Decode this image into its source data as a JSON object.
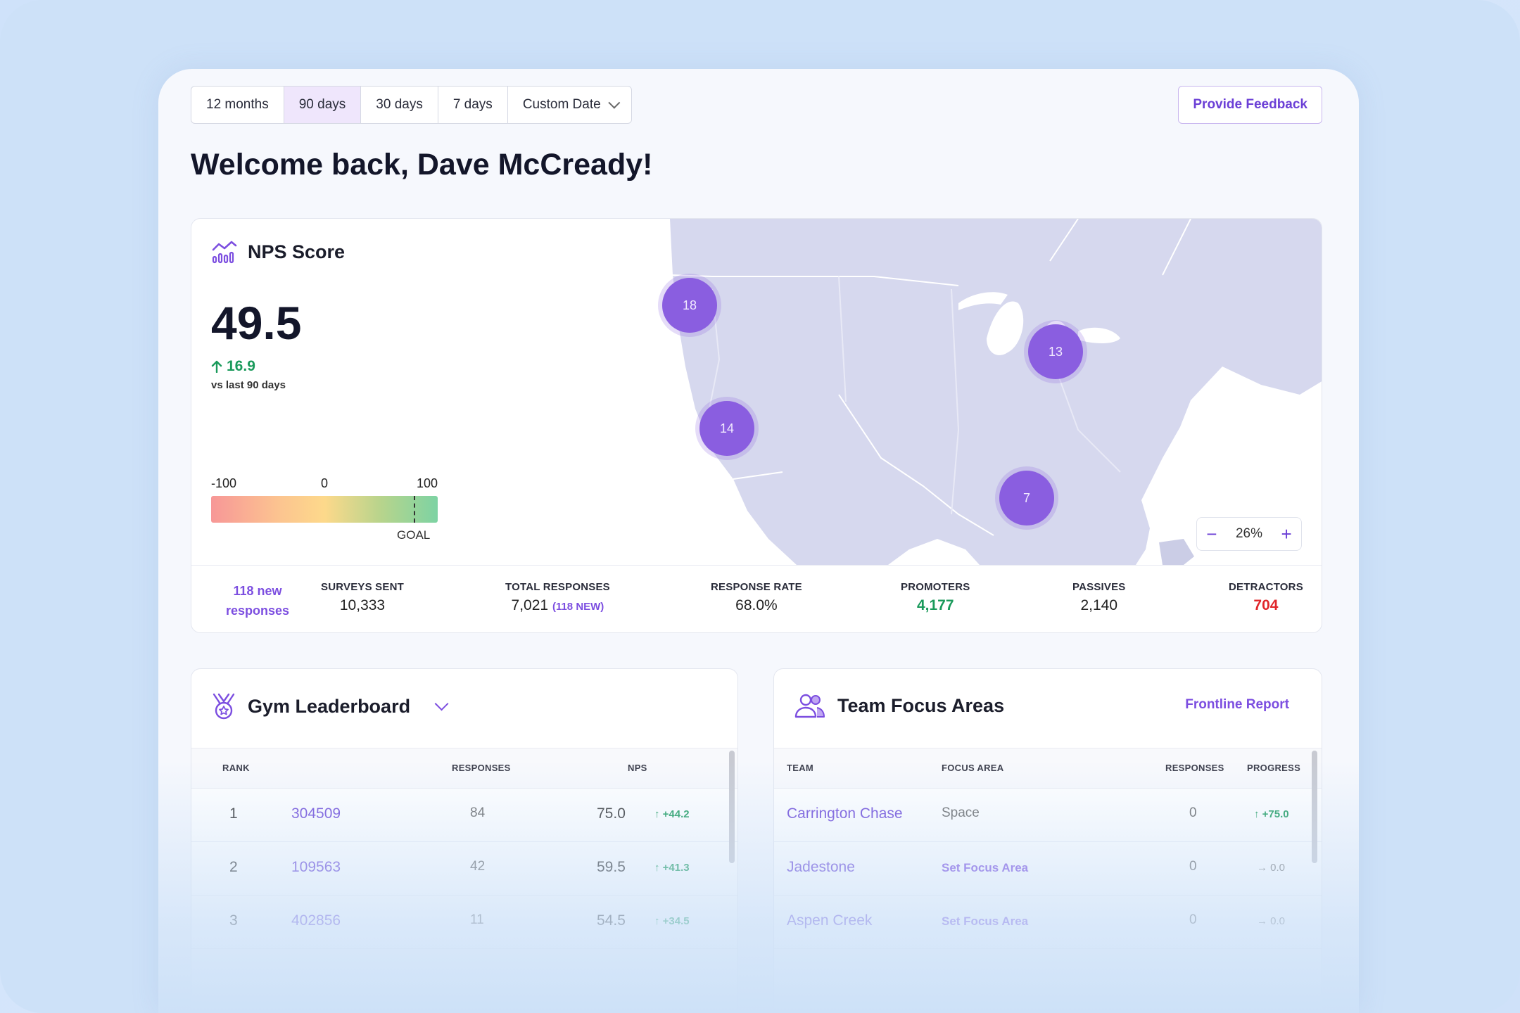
{
  "range": {
    "options": [
      "12 months",
      "90 days",
      "30 days",
      "7 days",
      "Custom Date"
    ],
    "active": "90 days"
  },
  "header": {
    "feedback_label": "Provide Feedback",
    "welcome": "Welcome back, Dave McCready!"
  },
  "nps": {
    "title": "NPS Score",
    "score": "49.5",
    "delta": "16.9",
    "delta_caption": "vs last 90 days",
    "scale": {
      "min": "-100",
      "mid": "0",
      "max": "100",
      "goal_label": "GOAL"
    },
    "map": {
      "clusters": [
        "18",
        "13",
        "14",
        "7"
      ],
      "zoom_level": "26%",
      "zoom_minus": "−",
      "zoom_plus": "+"
    },
    "stats": {
      "new_responses": "118 new responses",
      "surveys_sent_label": "SURVEYS SENT",
      "surveys_sent": "10,333",
      "total_responses_label": "TOTAL RESPONSES",
      "total_responses": "7,021",
      "total_responses_new": "(118 NEW)",
      "response_rate_label": "RESPONSE RATE",
      "response_rate": "68.0%",
      "promoters_label": "PROMOTERS",
      "promoters": "4,177",
      "passives_label": "PASSIVES",
      "passives": "2,140",
      "detractors_label": "DETRACTORS",
      "detractors": "704"
    },
    "colors": {
      "promoters": "#1a9a5b",
      "detractors": "#e0262a",
      "accent": "#7c4ee0"
    }
  },
  "leaderboard": {
    "title": "Gym Leaderboard",
    "columns": [
      "RANK",
      "RESPONSES",
      "NPS"
    ],
    "rows": [
      {
        "rank": "1",
        "gym": "304509",
        "responses": "84",
        "nps": "75.0",
        "change": "+44.2"
      },
      {
        "rank": "2",
        "gym": "109563",
        "responses": "42",
        "nps": "59.5",
        "change": "+41.3"
      },
      {
        "rank": "3",
        "gym": "402856",
        "responses": "11",
        "nps": "54.5",
        "change": "+34.5"
      }
    ]
  },
  "focus": {
    "title": "Team Focus Areas",
    "link": "Frontline Report",
    "columns": [
      "TEAM",
      "FOCUS AREA",
      "RESPONSES",
      "PROGRESS"
    ],
    "rows": [
      {
        "team": "Carrington Chase",
        "focus": "Space",
        "responses": "0",
        "progress": "+75.0"
      },
      {
        "team": "Jadestone",
        "focus": "Set Focus Area",
        "responses": "0",
        "progress": "0.0"
      },
      {
        "team": "Aspen Creek",
        "focus": "Set Focus Area",
        "responses": "0",
        "progress": "0.0"
      }
    ]
  }
}
